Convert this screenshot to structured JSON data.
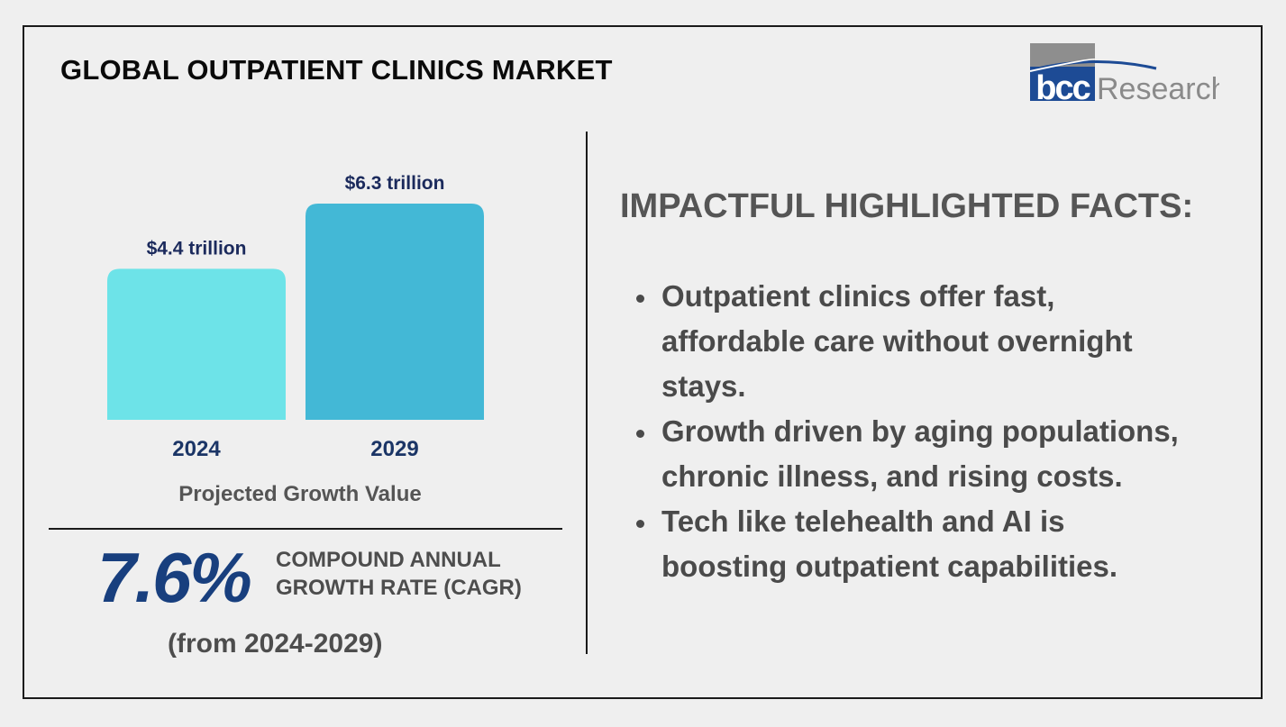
{
  "title": "GLOBAL OUTPATIENT CLINICS MARKET",
  "logo": {
    "name": "bcc-research-logo",
    "part1": "bcc",
    "part2": "Research"
  },
  "chart_data": {
    "type": "bar",
    "title": "",
    "xlabel": "Projected Growth Value",
    "ylabel": "",
    "categories": [
      "2024",
      "2029"
    ],
    "values": [
      4.4,
      6.3
    ],
    "value_labels": [
      "$4.4 trillion",
      "$6.3 trillion"
    ],
    "unit": "trillion USD",
    "ylim": [
      0,
      6.3
    ],
    "grid": false,
    "colors": [
      "#6de3e8",
      "#43b8d6"
    ]
  },
  "cagr": {
    "value": "7.6%",
    "label_line1": "COMPOUND ANNUAL",
    "label_line2": "GROWTH RATE (CAGR)",
    "range": "(from 2024-2029)"
  },
  "facts": {
    "title": "IMPACTFUL HIGHLIGHTED FACTS:",
    "items": [
      {
        "line1": "Outpatient clinics offer fast,",
        "line2": "affordable care without overnight",
        "line3": "stays."
      },
      {
        "line1": "Growth driven by aging populations,",
        "line2": "chronic illness, and rising costs."
      },
      {
        "line1": "Tech like telehealth and AI is",
        "line2": "boosting outpatient capabilities."
      }
    ]
  },
  "colors": {
    "accent_dark": "#183f7e",
    "label_navy": "#1b2a5c",
    "text_gray": "#4d4d4d"
  }
}
